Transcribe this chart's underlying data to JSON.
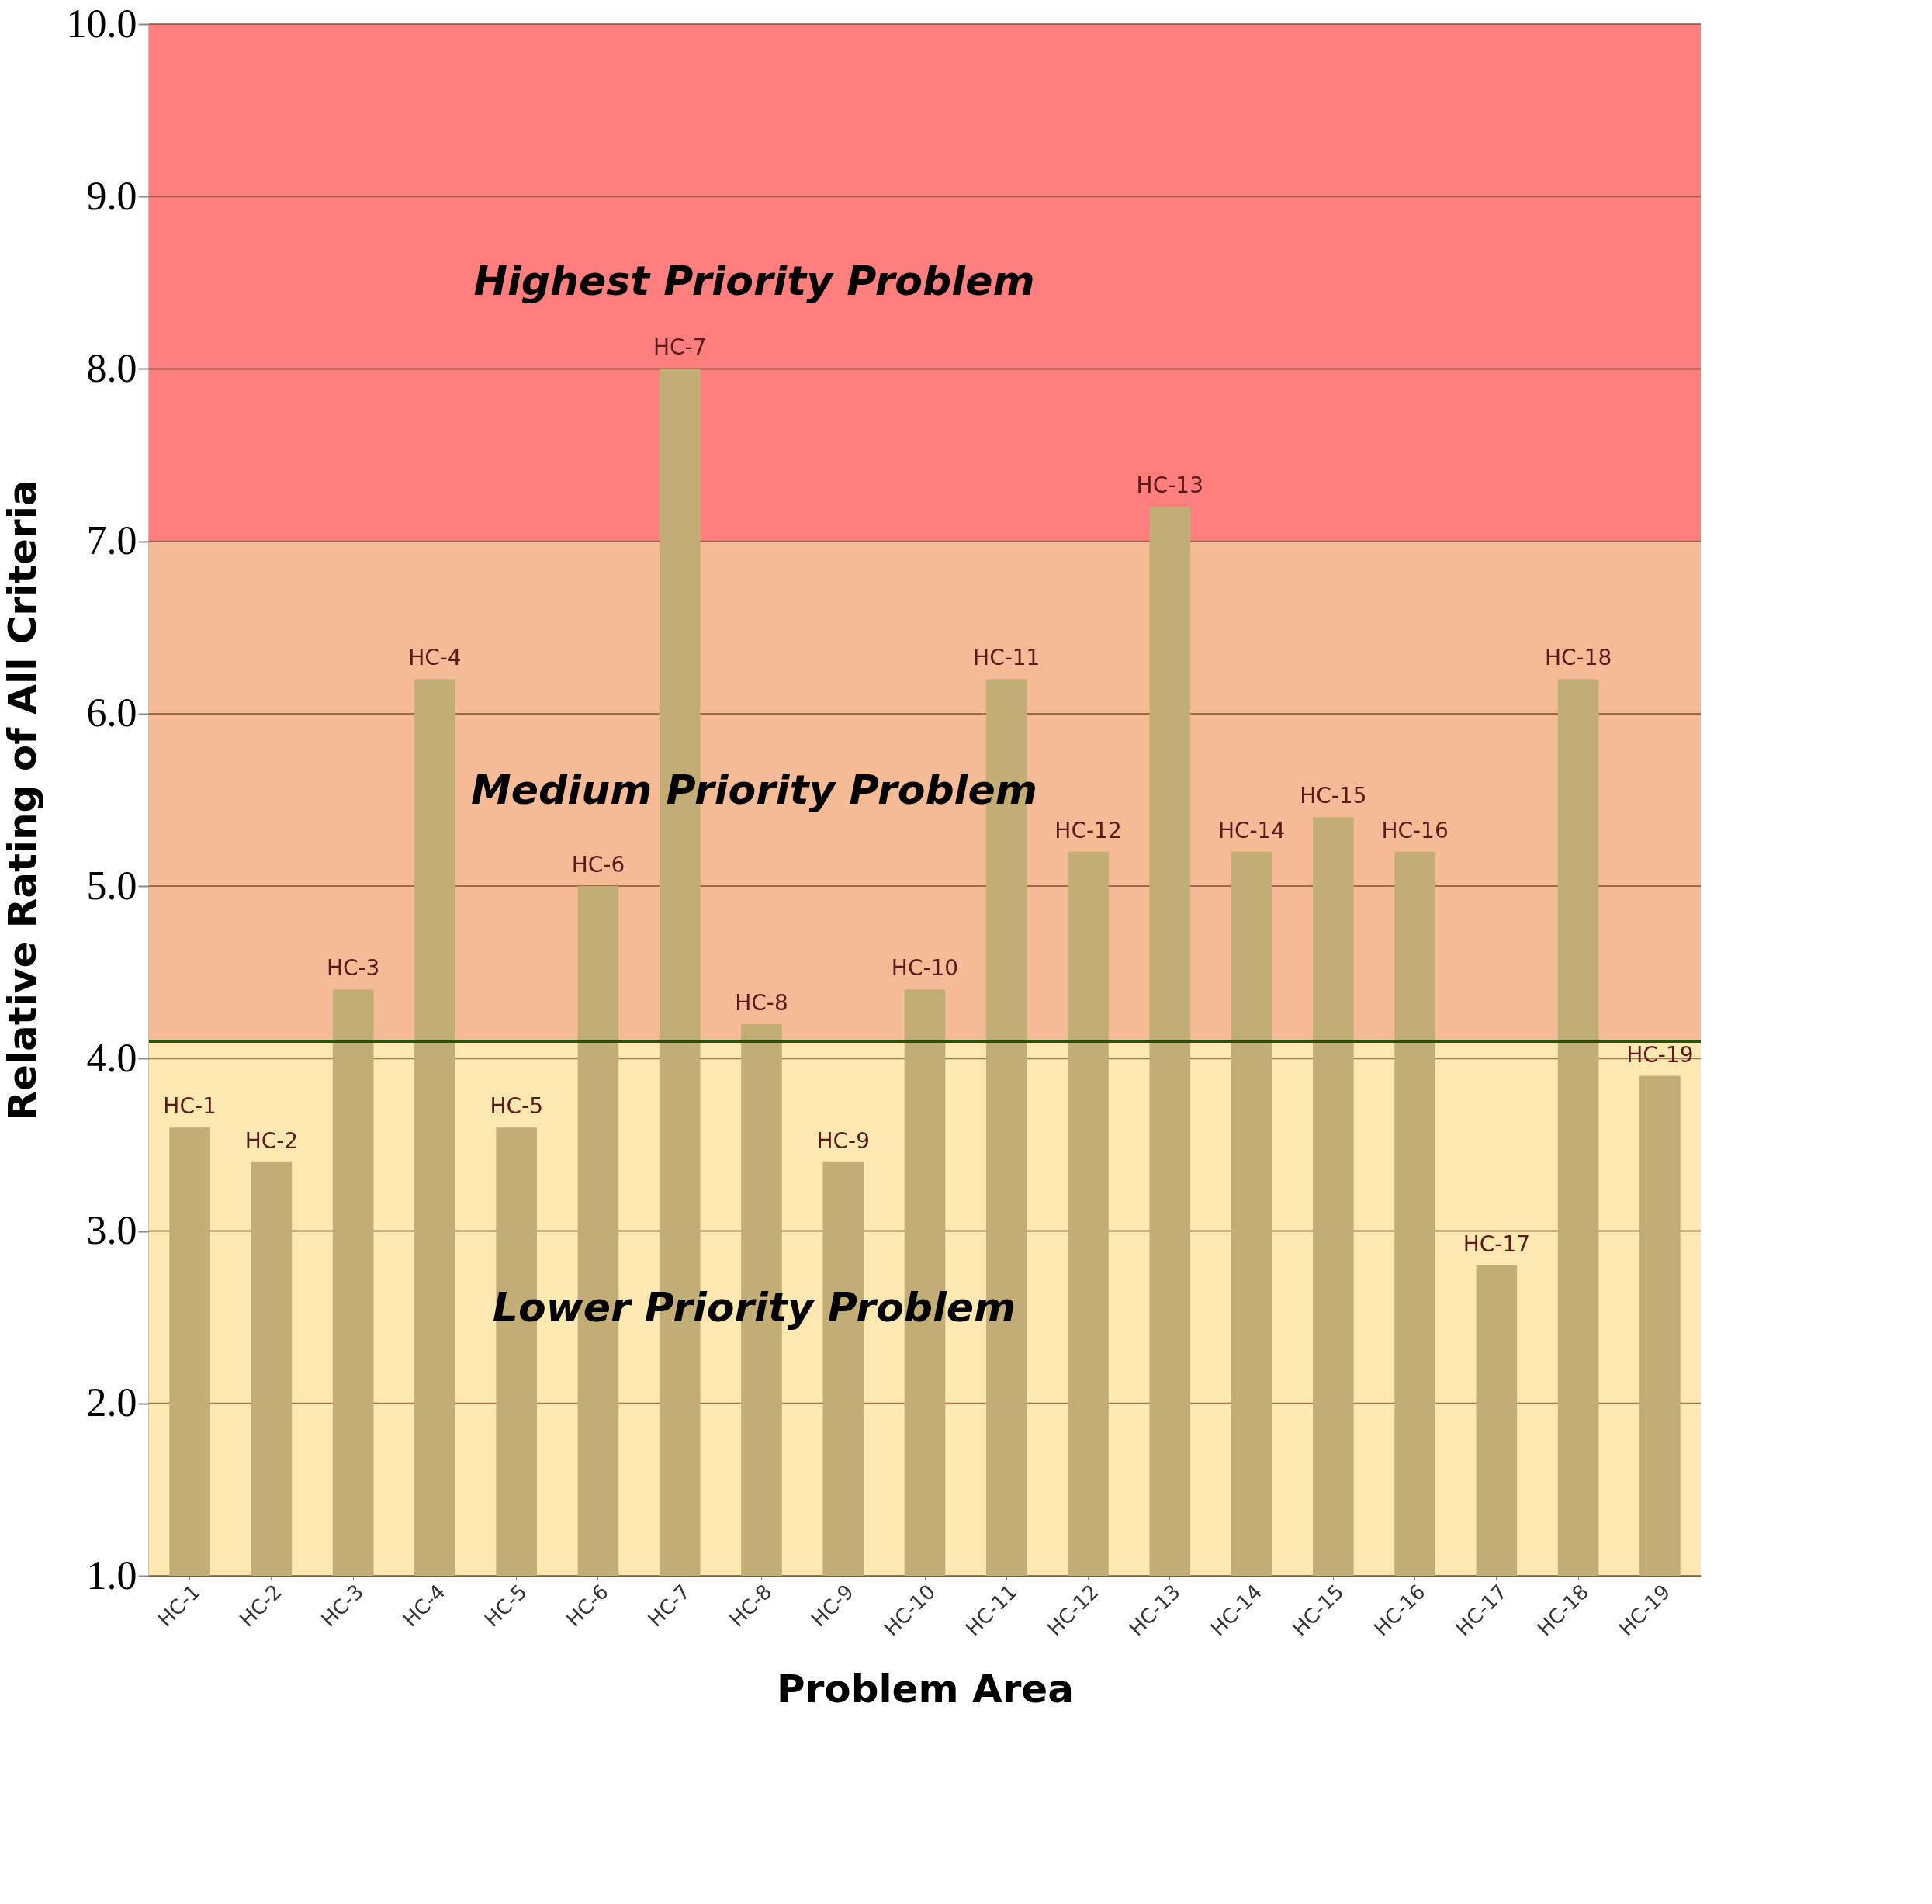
{
  "chart_data": {
    "type": "bar",
    "xlabel": "Problem Area",
    "ylabel": "Relative Rating of All Criteria",
    "categories": [
      "HC-1",
      "HC-2",
      "HC-3",
      "HC-4",
      "HC-5",
      "HC-6",
      "HC-7",
      "HC-8",
      "HC-9",
      "HC-10",
      "HC-11",
      "HC-12",
      "HC-13",
      "HC-14",
      "HC-15",
      "HC-16",
      "HC-17",
      "HC-18",
      "HC-19"
    ],
    "values": [
      3.6,
      3.4,
      4.4,
      6.2,
      3.6,
      5.0,
      8.0,
      4.2,
      3.4,
      4.4,
      6.2,
      5.2,
      7.2,
      5.2,
      5.4,
      5.2,
      2.8,
      6.2,
      3.9
    ],
    "value_labels": [
      "HC-1",
      "HC-2",
      "HC-3",
      "HC-4",
      "HC-5",
      "HC-6",
      "HC-7",
      "HC-8",
      "HC-9",
      "HC-10",
      "HC-11",
      "HC-12",
      "HC-13",
      "HC-14",
      "HC-15",
      "HC-16",
      "HC-17",
      "HC-18",
      "HC-19"
    ],
    "color": "#c2ae74",
    "ylim": [
      1,
      10
    ],
    "yticks": [
      {
        "value": 1,
        "label": "1.0"
      },
      {
        "value": 2,
        "label": "2.0"
      },
      {
        "value": 3,
        "label": "3.0"
      },
      {
        "value": 4,
        "label": "4.0"
      },
      {
        "value": 5,
        "label": "5.0"
      },
      {
        "value": 6,
        "label": "6.0"
      },
      {
        "value": 7,
        "label": "7.0"
      },
      {
        "value": 8,
        "label": "8.0"
      },
      {
        "value": 9,
        "label": "9.0"
      },
      {
        "value": 10,
        "label": "10.0"
      }
    ],
    "grid": "y",
    "bands": [
      {
        "axis": "y",
        "from": 1,
        "to": 4.1,
        "label": "Lower Priority Problem",
        "color": "#fde9b0"
      },
      {
        "axis": "y",
        "from": 4.1,
        "to": 7.0,
        "label": "Medium Priority Problem",
        "color": "#f4bb96"
      },
      {
        "axis": "y",
        "from": 7.0,
        "to": 10,
        "label": "Highest Priority Problem",
        "color": "#ff7f7f"
      }
    ],
    "ref_lines": [
      {
        "axis": "y",
        "value": 4.1,
        "color": "#2f4f0f"
      }
    ]
  }
}
